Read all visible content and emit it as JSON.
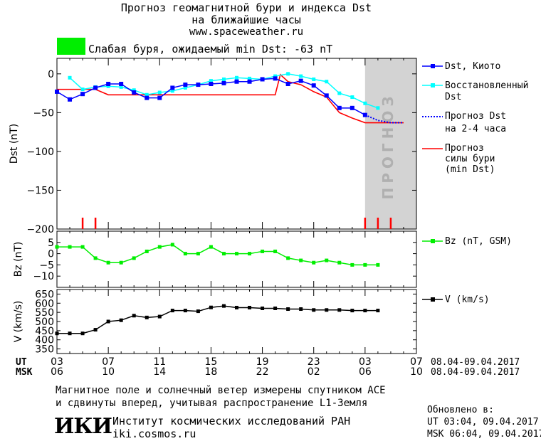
{
  "header": {
    "title_line1": "Прогноз геомагнитной бури и индекса Dst",
    "title_line2": "на ближайшие часы",
    "url": "www.spaceweather.ru"
  },
  "status": {
    "color": "#00ee00",
    "text": "Слабая буря, ожидаемый min Dst: -63 nT"
  },
  "legend": {
    "dst_kyoto": "Dst, Киото",
    "dst_restored_1": "Восстановленный",
    "dst_restored_2": "Dst",
    "forecast_dst_1": "Прогноз Dst",
    "forecast_dst_2": "на 2-4 часа",
    "storm_1": "Прогноз",
    "storm_2": "силы бури",
    "storm_3": "(min Dst)",
    "bz": "Bz (nT, GSM)",
    "v": "V (km/s)"
  },
  "forecast_band_label": "ПРОГНОЗ",
  "time_axis": {
    "ut_label": "UT",
    "msk_label": "MSK",
    "ut_ticks": [
      "03",
      "07",
      "11",
      "15",
      "19",
      "23",
      "03",
      "07"
    ],
    "msk_ticks": [
      "06",
      "10",
      "14",
      "18",
      "22",
      "02",
      "06",
      "10"
    ],
    "date_range": "08.04-09.04.2017"
  },
  "footer": {
    "line1": "Магнитное поле и солнечный ветер измерены спутником ACE",
    "line2": "и сдвинуты вперед, учитывая распространение L1-Земля",
    "institute": "Институт космических исследований РАН",
    "site": "iki.cosmos.ru",
    "logo": "ИКИ"
  },
  "updated": {
    "label": "Обновлено в:",
    "ut": "UT  03:04, 09.04.2017",
    "msk": "MSK 06:04, 09.04.2017"
  },
  "colors": {
    "dst": "#0000ff",
    "restored": "#00ffff",
    "storm": "#ff0000",
    "bz": "#00ee00",
    "v": "#000000",
    "forecast_band": "#d3d3d3"
  },
  "chart_data": [
    {
      "type": "line",
      "ylabel": "Dst (nT)",
      "ylim": [
        -200,
        20
      ],
      "yticks": [
        0,
        -50,
        -100,
        -150,
        -200
      ],
      "xlim": [
        0,
        28
      ],
      "forecast_start": 24,
      "series": [
        {
          "name": "Dst, Киото",
          "x": [
            0,
            1,
            2,
            3,
            4,
            5,
            6,
            7,
            8,
            9,
            10,
            11,
            12,
            13,
            14,
            15,
            16,
            17,
            18,
            19,
            20,
            21,
            22,
            23,
            24
          ],
          "y": [
            -23,
            -33,
            -26,
            -18,
            -13,
            -13,
            -24,
            -31,
            -31,
            -18,
            -14,
            -14,
            -13,
            -12,
            -10,
            -10,
            -7,
            -6,
            -13,
            -9,
            -15,
            -28,
            -44,
            -44,
            -53
          ]
        },
        {
          "name": "Восстановленный Dst",
          "x": [
            1,
            2,
            3,
            4,
            5,
            6,
            7,
            8,
            9,
            10,
            11,
            12,
            13,
            14,
            15,
            16,
            17,
            18,
            19,
            20,
            21,
            22,
            23,
            24,
            25
          ],
          "y": [
            -5,
            -20,
            -17,
            -16,
            -17,
            -21,
            -27,
            -24,
            -22,
            -18,
            -14,
            -9,
            -7,
            -5,
            -6,
            -7,
            -3,
            0,
            -3,
            -7,
            -10,
            -25,
            -30,
            -38,
            -44
          ]
        },
        {
          "name": "Прогноз Dst на 2-4 часа",
          "x": [
            24,
            25,
            26,
            27
          ],
          "y": [
            -53,
            -60,
            -63,
            -63
          ]
        },
        {
          "name": "Прогноз силы бури (min Dst)",
          "x": [
            0,
            1,
            2,
            3,
            4,
            5,
            6,
            7,
            8,
            9,
            10,
            11,
            12,
            13,
            14,
            15,
            16,
            17,
            17.4,
            18,
            19,
            20,
            21,
            22,
            23,
            24,
            25,
            26,
            27
          ],
          "y": [
            -20,
            -20,
            -20,
            -20,
            -27,
            -27,
            -27,
            -27,
            -27,
            -27,
            -27,
            -27,
            -27,
            -27,
            -27,
            -27,
            -27,
            -27,
            -1,
            -10,
            -14,
            -23,
            -30,
            -50,
            -57,
            -63,
            -63,
            -63,
            -63
          ]
        }
      ],
      "storm_markers_x": [
        2,
        3,
        24,
        25,
        26
      ]
    },
    {
      "type": "line",
      "ylabel": "Bz (nT)",
      "ylim": [
        -15,
        10
      ],
      "yticks": [
        5,
        0,
        -5,
        -10
      ],
      "xlim": [
        0,
        28
      ],
      "series": [
        {
          "name": "Bz (nT, GSM)",
          "x": [
            0,
            1,
            2,
            3,
            4,
            5,
            6,
            7,
            8,
            9,
            10,
            11,
            12,
            13,
            14,
            15,
            16,
            17,
            18,
            19,
            20,
            21,
            22,
            23,
            24,
            25
          ],
          "y": [
            3,
            3,
            3,
            -2,
            -4,
            -4,
            -2,
            1,
            3,
            4,
            0,
            0,
            3,
            0,
            0,
            0,
            1,
            1,
            -2,
            -3,
            -4,
            -3,
            -4,
            -5,
            -5,
            -5
          ]
        }
      ]
    },
    {
      "type": "line",
      "ylabel": "V (km/s)",
      "ylim": [
        325,
        675
      ],
      "yticks": [
        650,
        600,
        550,
        500,
        450,
        400,
        350
      ],
      "xlim": [
        0,
        28
      ],
      "series": [
        {
          "name": "V (km/s)",
          "x": [
            0,
            1,
            2,
            3,
            4,
            5,
            6,
            7,
            8,
            9,
            10,
            11,
            12,
            13,
            14,
            15,
            16,
            17,
            18,
            19,
            20,
            21,
            22,
            23,
            24,
            25
          ],
          "y": [
            435,
            435,
            435,
            455,
            500,
            507,
            532,
            522,
            527,
            560,
            560,
            556,
            577,
            585,
            576,
            576,
            572,
            572,
            568,
            568,
            563,
            563,
            563,
            560,
            560,
            560
          ]
        }
      ]
    }
  ]
}
